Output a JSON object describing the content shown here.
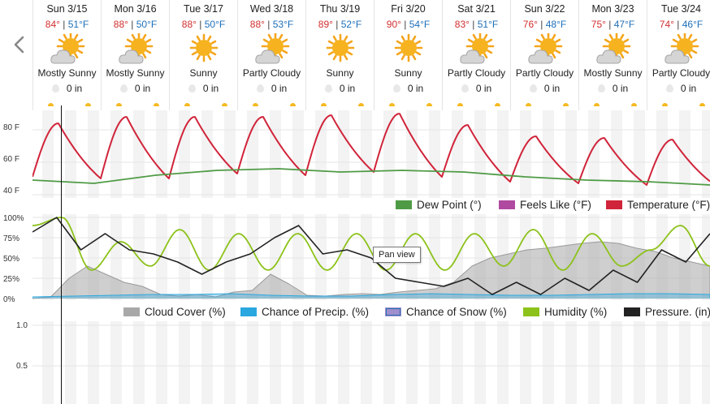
{
  "forecast": [
    {
      "date": "Sun 3/15",
      "high": "84°",
      "low": "51°F",
      "condition": "Mostly Sunny",
      "precip": "0 in",
      "icon": "mostly-sunny-icon"
    },
    {
      "date": "Mon 3/16",
      "high": "88°",
      "low": "50°F",
      "condition": "Mostly Sunny",
      "precip": "0 in",
      "icon": "mostly-sunny-icon"
    },
    {
      "date": "Tue 3/17",
      "high": "88°",
      "low": "50°F",
      "condition": "Sunny",
      "precip": "0 in",
      "icon": "sunny-icon"
    },
    {
      "date": "Wed 3/18",
      "high": "88°",
      "low": "53°F",
      "condition": "Partly Cloudy",
      "precip": "0 in",
      "icon": "partly-cloudy-icon"
    },
    {
      "date": "Thu 3/19",
      "high": "89°",
      "low": "52°F",
      "condition": "Sunny",
      "precip": "0 in",
      "icon": "sunny-icon"
    },
    {
      "date": "Fri 3/20",
      "high": "90°",
      "low": "54°F",
      "condition": "Sunny",
      "precip": "0 in",
      "icon": "sunny-icon"
    },
    {
      "date": "Sat 3/21",
      "high": "83°",
      "low": "51°F",
      "condition": "Partly Cloudy",
      "precip": "0 in",
      "icon": "partly-cloudy-icon"
    },
    {
      "date": "Sun 3/22",
      "high": "76°",
      "low": "48°F",
      "condition": "Partly Cloudy",
      "precip": "0 in",
      "icon": "partly-cloudy-icon"
    },
    {
      "date": "Mon 3/23",
      "high": "75°",
      "low": "47°F",
      "condition": "Mostly Sunny",
      "precip": "0 in",
      "icon": "mostly-sunny-icon"
    },
    {
      "date": "Tue 3/24",
      "high": "74°",
      "low": "46°F",
      "condition": "Partly Cloudy",
      "precip": "0 in",
      "icon": "partly-cloudy-icon"
    }
  ],
  "separator": " | ",
  "nav": {
    "prev_icon": "chevron-left-icon"
  },
  "colors": {
    "temperature": "#d0243a",
    "dew_point": "#4f9b45",
    "feels_like": "#b04aa0",
    "cloud_cover": "#a8a8a8",
    "chance_precip": "#2aa7df",
    "chance_snow": "#9f8fce",
    "humidity": "#8cc21a",
    "pressure": "#222222",
    "sun": "#f5b920"
  },
  "tooltip": "Pan view",
  "chart_data": [
    {
      "type": "line",
      "x_label_days": [
        "Sun 3/15",
        "Mon 3/16",
        "Tue 3/17",
        "Wed 3/18",
        "Thu 3/19",
        "Fri 3/20",
        "Sat 3/21",
        "Sun 3/22",
        "Mon 3/23",
        "Tue 3/24"
      ],
      "yticks": [
        "80 F",
        "60 F",
        "40 F"
      ],
      "ylim": [
        38,
        92
      ],
      "series": [
        {
          "name": "Temperature (°F)",
          "daily_high": [
            84,
            88,
            88,
            88,
            89,
            90,
            83,
            76,
            75,
            74
          ],
          "daily_low": [
            51,
            50,
            50,
            53,
            52,
            54,
            51,
            48,
            47,
            46
          ],
          "color": "#d0243a"
        },
        {
          "name": "Dew Point (°)",
          "values": [
            49,
            47,
            52,
            55,
            56,
            54,
            55,
            54,
            51,
            49,
            48,
            46
          ],
          "color": "#4f9b45"
        },
        {
          "name": "Feels Like (°F)",
          "values": [],
          "color": "#b04aa0"
        }
      ],
      "legend": [
        "Dew Point (°)",
        "Feels Like (°F)",
        "Temperature (°F)"
      ]
    },
    {
      "type": "line",
      "yticks": [
        "100%",
        "75%",
        "50%",
        "25%",
        "0%"
      ],
      "ylim": [
        0,
        100
      ],
      "series": [
        {
          "name": "Cloud Cover (%)",
          "values": [
            0,
            2,
            25,
            40,
            30,
            20,
            15,
            5,
            3,
            5,
            2,
            8,
            10,
            30,
            18,
            4,
            3,
            5,
            6,
            5,
            8,
            10,
            12,
            20,
            40,
            50,
            55,
            60,
            62,
            65,
            68,
            70,
            68,
            62,
            58,
            50,
            45,
            40
          ],
          "color": "#a8a8a8"
        },
        {
          "name": "Chance of Precip. (%)",
          "values": [
            2,
            3,
            4,
            5,
            5,
            6,
            4,
            3,
            3,
            5,
            6,
            5,
            4,
            4,
            5,
            6,
            6,
            5
          ],
          "color": "#2aa7df"
        },
        {
          "name": "Chance of Snow (%)",
          "values": [
            0,
            0,
            0,
            0,
            0,
            0,
            0,
            0,
            0,
            0
          ],
          "color": "#9f8fce"
        },
        {
          "name": "Humidity (%)",
          "values": [
            90,
            100,
            35,
            70,
            40,
            85,
            35,
            80,
            35,
            80,
            35,
            80,
            35,
            80,
            35,
            80,
            40,
            85,
            35,
            80,
            40,
            60,
            90,
            40
          ],
          "color": "#8cc21a"
        },
        {
          "name": "Pressure. (in)",
          "values": [
            82,
            100,
            60,
            80,
            60,
            55,
            45,
            30,
            45,
            55,
            75,
            90,
            55,
            60,
            50,
            25,
            20,
            15,
            25,
            5,
            20,
            5,
            25,
            10,
            35,
            20,
            60,
            45,
            80
          ],
          "color": "#222222"
        }
      ],
      "legend": [
        "Cloud Cover (%)",
        "Chance of Precip. (%)",
        "Chance of Snow (%)",
        "Humidity (%)",
        "Pressure. (in)"
      ]
    },
    {
      "type": "line",
      "yticks": [
        "1.0",
        "0.5"
      ],
      "series": []
    }
  ]
}
